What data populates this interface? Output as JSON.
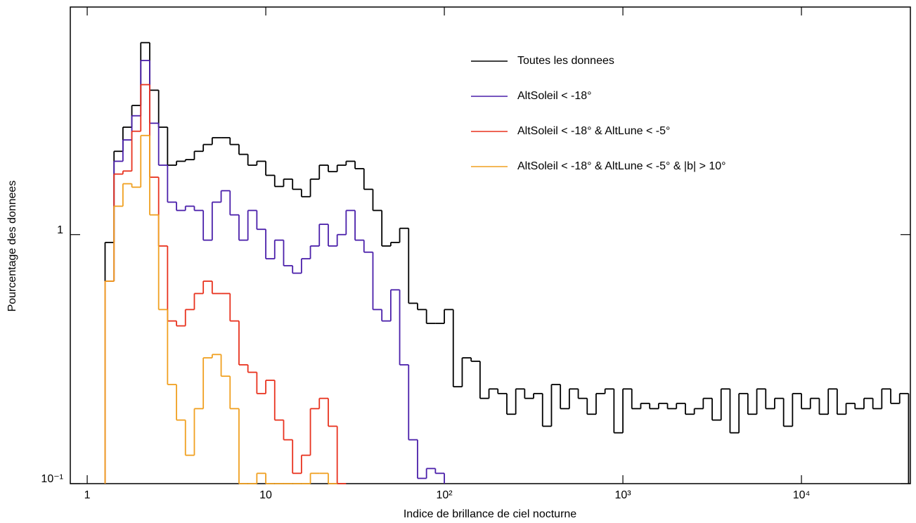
{
  "chart_data": {
    "type": "histogram",
    "xlabel": "Indice de brillance de ciel nocturne",
    "ylabel": "Pourcentage des donnees",
    "xscale": "log",
    "yscale": "log",
    "legend": "upper right",
    "xlim": [
      0.804,
      40740
    ],
    "ylim": [
      0.1,
      8.2
    ],
    "xticks": [
      1,
      10,
      {
        "value": 100,
        "label": "10²"
      },
      {
        "value": 1000,
        "label": "10³"
      },
      {
        "value": 10000,
        "label": "10⁴"
      }
    ],
    "yticks": [
      {
        "value": 0.1,
        "label": "10⁻¹"
      },
      1
    ],
    "bins": [
      1.259,
      1.413,
      1.585,
      1.778,
      1.995,
      2.239,
      2.512,
      2.818,
      3.162,
      3.548,
      3.981,
      4.467,
      5.012,
      5.623,
      6.31,
      7.079,
      7.943,
      8.913,
      10,
      11.22,
      12.59,
      14.13,
      15.85,
      17.78,
      19.95,
      22.39,
      25.12,
      28.18,
      31.62,
      35.48,
      39.81,
      44.67,
      50.12,
      56.23,
      63.1,
      70.79,
      79.43,
      89.13,
      100,
      112.2,
      125.9,
      141.3,
      158.5,
      177.8,
      199.5,
      223.9,
      251.2,
      281.8,
      316.2,
      354.8,
      398.1,
      446.7,
      501.2,
      562.3,
      631,
      707.9,
      794.3,
      891.3,
      1000,
      1122,
      1259,
      1413,
      1585,
      1778,
      1995,
      2239,
      2512,
      2818,
      3162,
      3548,
      3981,
      4467,
      5012,
      5623,
      6310,
      7079,
      7943,
      8913,
      10000,
      11220,
      12590,
      14130,
      15850,
      17780,
      19950,
      22390,
      25120,
      28180,
      31620,
      35480,
      39810
    ],
    "series": [
      {
        "name": "Toutes les donnees",
        "color": "#000000",
        "values": [
          0.93,
          2.16,
          2.7,
          3.3,
          5.9,
          3.8,
          2.7,
          1.9,
          1.97,
          2.0,
          2.16,
          2.3,
          2.45,
          2.45,
          2.3,
          2.1,
          1.9,
          1.97,
          1.73,
          1.56,
          1.67,
          1.52,
          1.42,
          1.67,
          1.9,
          1.79,
          1.9,
          1.97,
          1.84,
          1.52,
          1.25,
          0.9,
          0.93,
          1.06,
          0.53,
          0.5,
          0.44,
          0.44,
          0.5,
          0.245,
          0.32,
          0.31,
          0.22,
          0.24,
          0.23,
          0.19,
          0.24,
          0.22,
          0.23,
          0.17,
          0.25,
          0.2,
          0.24,
          0.22,
          0.19,
          0.23,
          0.24,
          0.16,
          0.24,
          0.2,
          0.21,
          0.2,
          0.21,
          0.2,
          0.21,
          0.19,
          0.2,
          0.22,
          0.18,
          0.24,
          0.16,
          0.23,
          0.19,
          0.24,
          0.2,
          0.22,
          0.17,
          0.23,
          0.2,
          0.22,
          0.19,
          0.24,
          0.19,
          0.21,
          0.2,
          0.22,
          0.2,
          0.24,
          0.21,
          0.23
        ]
      },
      {
        "name": "AltSoleil < -18°",
        "color": "#4a1faa",
        "values": [
          0.65,
          1.97,
          2.4,
          3.0,
          5.0,
          2.8,
          1.9,
          1.35,
          1.25,
          1.3,
          1.25,
          0.95,
          1.35,
          1.5,
          1.2,
          0.95,
          1.25,
          1.05,
          0.8,
          0.95,
          0.75,
          0.7,
          0.8,
          0.9,
          1.1,
          0.9,
          1.0,
          1.25,
          0.95,
          0.85,
          0.5,
          0.45,
          0.6,
          0.3,
          0.15,
          0.105,
          0.115,
          0.11,
          null,
          null,
          null,
          null,
          null,
          null,
          null,
          null,
          null,
          null,
          null,
          null,
          null,
          null,
          null,
          null,
          null,
          null,
          null,
          null,
          null,
          null,
          null,
          null,
          null,
          null,
          null,
          null,
          null,
          null,
          null,
          null,
          null,
          null,
          null,
          null,
          null,
          null,
          null,
          null,
          null,
          null,
          null,
          null,
          null,
          null,
          null,
          null,
          null,
          null,
          null,
          null
        ]
      },
      {
        "name": "AltSoleil < -18° & AltLune < -5°",
        "color": "#e8321e",
        "values": [
          0.65,
          1.75,
          1.8,
          2.6,
          4.0,
          1.7,
          0.9,
          0.45,
          0.43,
          0.5,
          0.58,
          0.65,
          0.58,
          0.58,
          0.45,
          0.3,
          0.28,
          0.23,
          0.26,
          0.18,
          0.15,
          0.11,
          0.13,
          0.2,
          0.22,
          0.17,
          0.1,
          null,
          null,
          null,
          null,
          null,
          null,
          null,
          null,
          null,
          null,
          null,
          null,
          null,
          null,
          null,
          null,
          null,
          null,
          null,
          null,
          null,
          null,
          null,
          null,
          null,
          null,
          null,
          null,
          null,
          null,
          null,
          null,
          null,
          null,
          null,
          null,
          null,
          null,
          null,
          null,
          null,
          null,
          null,
          null,
          null,
          null,
          null,
          null,
          null,
          null,
          null,
          null,
          null,
          null,
          null,
          null,
          null,
          null,
          null,
          null,
          null,
          null,
          null
        ]
      },
      {
        "name": "AltSoleil < -18° & AltLune < -5° & |b| > 10°",
        "color": "#f0a020",
        "values": [
          0.65,
          1.3,
          1.6,
          1.55,
          2.5,
          1.2,
          0.5,
          0.25,
          0.18,
          0.13,
          0.2,
          0.32,
          0.33,
          0.27,
          0.2,
          0.1,
          0.1,
          0.11,
          0.1,
          0.1,
          0.1,
          0.1,
          0.1,
          0.11,
          0.11,
          0.1,
          null,
          null,
          null,
          null,
          null,
          null,
          null,
          null,
          null,
          null,
          null,
          null,
          null,
          null,
          null,
          null,
          null,
          null,
          null,
          null,
          null,
          null,
          null,
          null,
          null,
          null,
          null,
          null,
          null,
          null,
          null,
          null,
          null,
          null,
          null,
          null,
          null,
          null,
          null,
          null,
          null,
          null,
          null,
          null,
          null,
          null,
          null,
          null,
          null,
          null,
          null,
          null,
          null,
          null,
          null,
          null,
          null,
          null,
          null,
          null,
          null,
          null,
          null,
          null
        ]
      }
    ]
  }
}
